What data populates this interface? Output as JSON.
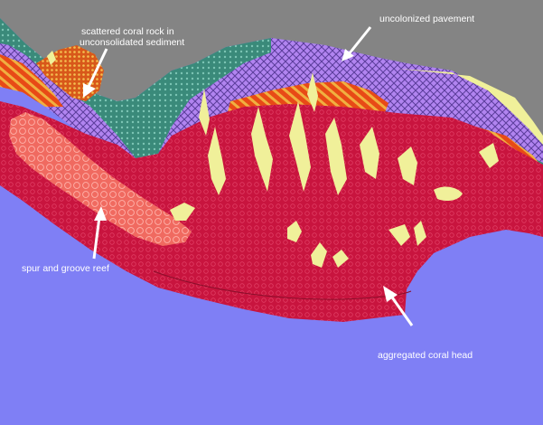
{
  "map": {
    "colors": {
      "land": "#848484",
      "deep_water": "#7f7ff5",
      "uncolonized_pavement": "#b184f0",
      "aggregated_coral_head": "#c8143e",
      "spur_and_groove_reef": "#f06a60",
      "scattered_coral_rock": "#d8581a",
      "sand_flat": "#f0f09a",
      "teal_substrate": "#3a8a7a",
      "orange_hatch": "#e84a16",
      "label_text": "#ffffff",
      "arrow": "#ffffff"
    },
    "labels": {
      "scattered_line1": "scattered coral rock in",
      "scattered_line2": "unconsolidated sediment",
      "pavement": "uncolonized pavement",
      "spur": "spur and groove reef",
      "aggregated": "aggregated coral head"
    },
    "icons": [
      "arrow-icon"
    ]
  }
}
